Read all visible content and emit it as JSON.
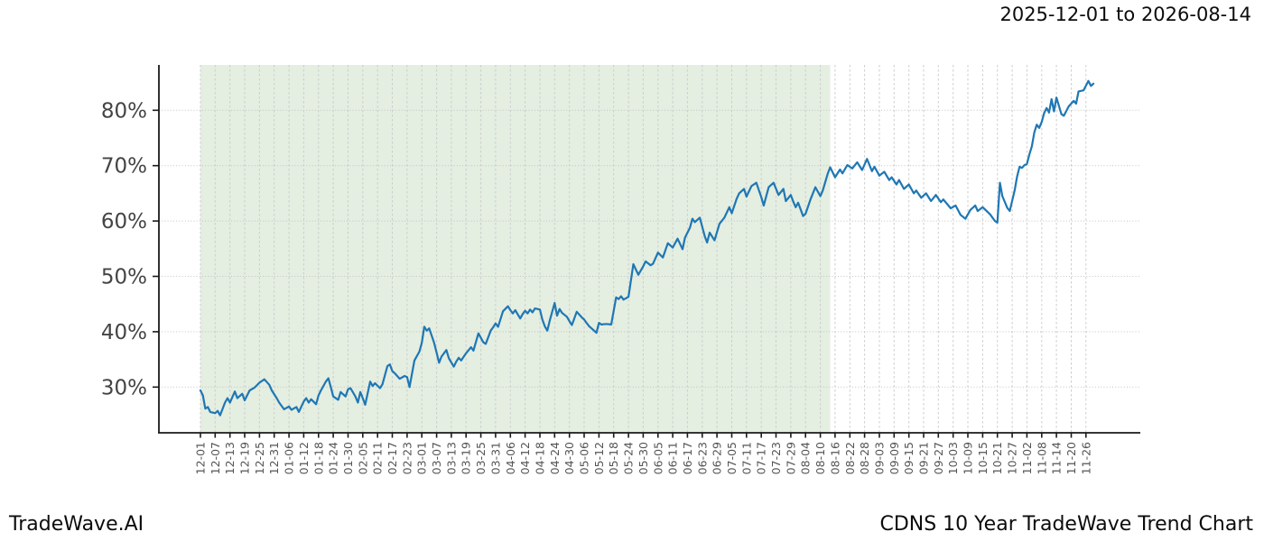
{
  "header": {
    "date_range": "2025-12-01 to 2026-08-14"
  },
  "footer": {
    "brand": "TradeWave.AI",
    "caption": "CDNS 10 Year TradeWave Trend Chart"
  },
  "chart_data": {
    "type": "line",
    "title": "2025-12-01 to 2026-08-14",
    "xlabel": "",
    "ylabel": "",
    "x_unit": "days since 2025-12-01",
    "x_tick_step_days": 6,
    "x_tick_labels": [
      "12-01",
      "12-07",
      "12-13",
      "12-19",
      "12-25",
      "12-31",
      "01-06",
      "01-12",
      "01-18",
      "01-24",
      "01-30",
      "02-05",
      "02-11",
      "02-17",
      "02-23",
      "03-01",
      "03-07",
      "03-13",
      "03-19",
      "03-25",
      "03-31",
      "04-06",
      "04-12",
      "04-18",
      "04-24",
      "04-30",
      "05-06",
      "05-12",
      "05-18",
      "05-24",
      "05-30",
      "06-05",
      "06-11",
      "06-17",
      "06-23",
      "06-29",
      "07-05",
      "07-11",
      "07-17",
      "07-23",
      "07-29",
      "08-04",
      "08-10",
      "08-16",
      "08-22",
      "08-28",
      "09-03",
      "09-09",
      "09-15",
      "09-21",
      "09-27",
      "10-03",
      "10-09",
      "10-15",
      "10-21",
      "10-27",
      "11-02",
      "11-08",
      "11-14",
      "11-20",
      "11-26"
    ],
    "x_domain_days": [
      0,
      382
    ],
    "y_ticks_pct": [
      30,
      40,
      50,
      60,
      70,
      80
    ],
    "y_tick_labels": [
      "30%",
      "40%",
      "50%",
      "60%",
      "70%",
      "80%"
    ],
    "y_domain_pct": [
      21.7,
      88.4
    ],
    "grid": true,
    "legend": "none",
    "highlight_region": {
      "label": "2025-12-01 to 2026-08-14",
      "start_day": 0,
      "end_day": 256,
      "fill": "#e4eee1"
    },
    "line_color": "#1f77b4",
    "axis_color": "#1a1a1a",
    "grid_color_v": "#cdcdcd",
    "grid_color_h": "#c4c4c4",
    "tick_label_color": "#555555",
    "y_label_color": "#444444",
    "series": [
      {
        "name": "CDNS TradeWave trend (%)",
        "points": [
          [
            0,
            29.4
          ],
          [
            1,
            28.5
          ],
          [
            2,
            26.1
          ],
          [
            3,
            26.4
          ],
          [
            4,
            25.5
          ],
          [
            6,
            25.3
          ],
          [
            7,
            25.7
          ],
          [
            8,
            24.9
          ],
          [
            10,
            27.2
          ],
          [
            11,
            28.0
          ],
          [
            12,
            27.2
          ],
          [
            14,
            29.2
          ],
          [
            15,
            28.0
          ],
          [
            17,
            28.8
          ],
          [
            18,
            27.6
          ],
          [
            20,
            29.4
          ],
          [
            22,
            29.9
          ],
          [
            24,
            30.8
          ],
          [
            26,
            31.4
          ],
          [
            28,
            30.4
          ],
          [
            29,
            29.4
          ],
          [
            31,
            28.0
          ],
          [
            32,
            27.2
          ],
          [
            34,
            26.0
          ],
          [
            36,
            26.5
          ],
          [
            37,
            25.9
          ],
          [
            39,
            26.4
          ],
          [
            40,
            25.5
          ],
          [
            42,
            27.4
          ],
          [
            43,
            28.0
          ],
          [
            44,
            27.2
          ],
          [
            45,
            27.8
          ],
          [
            47,
            26.9
          ],
          [
            48,
            28.5
          ],
          [
            49,
            29.4
          ],
          [
            50,
            30.2
          ],
          [
            51,
            31.0
          ],
          [
            52,
            31.6
          ],
          [
            53,
            30.0
          ],
          [
            54,
            28.3
          ],
          [
            56,
            27.7
          ],
          [
            57,
            29.1
          ],
          [
            59,
            28.3
          ],
          [
            60,
            29.6
          ],
          [
            61,
            29.8
          ],
          [
            63,
            28.3
          ],
          [
            64,
            27.2
          ],
          [
            65,
            29.1
          ],
          [
            66,
            28.0
          ],
          [
            67,
            26.8
          ],
          [
            69,
            31.0
          ],
          [
            70,
            30.2
          ],
          [
            71,
            30.7
          ],
          [
            73,
            29.8
          ],
          [
            74,
            30.5
          ],
          [
            76,
            33.8
          ],
          [
            77,
            34.1
          ],
          [
            78,
            32.9
          ],
          [
            79,
            32.5
          ],
          [
            81,
            31.5
          ],
          [
            83,
            32.0
          ],
          [
            84,
            31.8
          ],
          [
            85,
            30.0
          ],
          [
            87,
            34.8
          ],
          [
            89,
            36.4
          ],
          [
            90,
            38.0
          ],
          [
            91,
            40.9
          ],
          [
            92,
            40.2
          ],
          [
            93,
            40.6
          ],
          [
            95,
            38.0
          ],
          [
            96,
            36.2
          ],
          [
            97,
            34.4
          ],
          [
            98,
            35.5
          ],
          [
            100,
            36.7
          ],
          [
            101,
            35.2
          ],
          [
            103,
            33.7
          ],
          [
            104,
            34.6
          ],
          [
            105,
            35.3
          ],
          [
            106,
            34.8
          ],
          [
            108,
            36.1
          ],
          [
            110,
            37.2
          ],
          [
            111,
            36.6
          ],
          [
            113,
            39.7
          ],
          [
            114,
            38.9
          ],
          [
            115,
            38.1
          ],
          [
            116,
            37.8
          ],
          [
            118,
            40.2
          ],
          [
            119,
            40.8
          ],
          [
            120,
            41.5
          ],
          [
            121,
            40.9
          ],
          [
            123,
            43.7
          ],
          [
            125,
            44.6
          ],
          [
            126,
            43.9
          ],
          [
            127,
            43.3
          ],
          [
            128,
            43.9
          ],
          [
            130,
            42.4
          ],
          [
            131,
            43.2
          ],
          [
            132,
            43.8
          ],
          [
            133,
            43.3
          ],
          [
            134,
            44.0
          ],
          [
            135,
            43.5
          ],
          [
            136,
            44.2
          ],
          [
            138,
            44.0
          ],
          [
            139,
            42.2
          ],
          [
            140,
            41.0
          ],
          [
            141,
            40.2
          ],
          [
            142,
            42.0
          ],
          [
            144,
            45.2
          ],
          [
            145,
            42.9
          ],
          [
            146,
            44.1
          ],
          [
            147,
            43.4
          ],
          [
            149,
            42.7
          ],
          [
            150,
            41.9
          ],
          [
            151,
            41.2
          ],
          [
            153,
            43.6
          ],
          [
            155,
            42.6
          ],
          [
            156,
            42.2
          ],
          [
            157,
            41.6
          ],
          [
            158,
            41.0
          ],
          [
            159,
            40.6
          ],
          [
            161,
            39.8
          ],
          [
            162,
            41.6
          ],
          [
            163,
            41.3
          ],
          [
            165,
            41.4
          ],
          [
            167,
            41.3
          ],
          [
            169,
            46.2
          ],
          [
            170,
            45.9
          ],
          [
            171,
            46.4
          ],
          [
            172,
            45.8
          ],
          [
            174,
            46.3
          ],
          [
            176,
            52.2
          ],
          [
            178,
            50.3
          ],
          [
            180,
            51.8
          ],
          [
            181,
            52.7
          ],
          [
            183,
            52.0
          ],
          [
            184,
            52.3
          ],
          [
            186,
            54.3
          ],
          [
            188,
            53.4
          ],
          [
            190,
            56.0
          ],
          [
            192,
            55.2
          ],
          [
            194,
            56.8
          ],
          [
            196,
            54.9
          ],
          [
            197,
            57.0
          ],
          [
            199,
            58.8
          ],
          [
            200,
            60.4
          ],
          [
            201,
            59.8
          ],
          [
            203,
            60.6
          ],
          [
            205,
            57.3
          ],
          [
            206,
            56.1
          ],
          [
            207,
            57.9
          ],
          [
            209,
            56.5
          ],
          [
            211,
            59.5
          ],
          [
            213,
            60.6
          ],
          [
            215,
            62.5
          ],
          [
            216,
            61.4
          ],
          [
            218,
            64.0
          ],
          [
            219,
            65.0
          ],
          [
            221,
            65.8
          ],
          [
            222,
            64.4
          ],
          [
            224,
            66.3
          ],
          [
            226,
            66.9
          ],
          [
            228,
            64.3
          ],
          [
            229,
            62.8
          ],
          [
            231,
            66.1
          ],
          [
            233,
            66.9
          ],
          [
            235,
            64.7
          ],
          [
            237,
            65.8
          ],
          [
            238,
            63.6
          ],
          [
            240,
            64.7
          ],
          [
            241,
            63.5
          ],
          [
            242,
            62.5
          ],
          [
            243,
            63.3
          ],
          [
            245,
            60.9
          ],
          [
            246,
            61.3
          ],
          [
            248,
            63.9
          ],
          [
            250,
            66.1
          ],
          [
            252,
            64.5
          ],
          [
            253,
            65.5
          ],
          [
            255,
            68.5
          ],
          [
            256,
            69.7
          ],
          [
            258,
            67.9
          ],
          [
            260,
            69.3
          ],
          [
            261,
            68.6
          ],
          [
            263,
            70.1
          ],
          [
            265,
            69.5
          ],
          [
            267,
            70.6
          ],
          [
            269,
            69.2
          ],
          [
            271,
            71.2
          ],
          [
            273,
            69.0
          ],
          [
            274,
            69.8
          ],
          [
            276,
            68.2
          ],
          [
            278,
            68.9
          ],
          [
            280,
            67.4
          ],
          [
            281,
            67.9
          ],
          [
            283,
            66.6
          ],
          [
            284,
            67.4
          ],
          [
            286,
            65.8
          ],
          [
            288,
            66.6
          ],
          [
            290,
            65.0
          ],
          [
            291,
            65.5
          ],
          [
            293,
            64.2
          ],
          [
            295,
            65.0
          ],
          [
            297,
            63.6
          ],
          [
            299,
            64.7
          ],
          [
            301,
            63.4
          ],
          [
            302,
            63.9
          ],
          [
            305,
            62.3
          ],
          [
            307,
            62.8
          ],
          [
            309,
            61.1
          ],
          [
            311,
            60.4
          ],
          [
            313,
            62.0
          ],
          [
            315,
            62.8
          ],
          [
            316,
            61.8
          ],
          [
            318,
            62.5
          ],
          [
            321,
            61.2
          ],
          [
            323,
            60.0
          ],
          [
            324,
            59.7
          ],
          [
            325,
            66.9
          ],
          [
            326,
            64.5
          ],
          [
            328,
            62.4
          ],
          [
            329,
            61.8
          ],
          [
            331,
            65.5
          ],
          [
            332,
            68.0
          ],
          [
            333,
            69.8
          ],
          [
            334,
            69.6
          ],
          [
            335,
            70.1
          ],
          [
            336,
            70.3
          ],
          [
            337,
            72.0
          ],
          [
            338,
            73.5
          ],
          [
            339,
            76.0
          ],
          [
            340,
            77.4
          ],
          [
            341,
            76.8
          ],
          [
            342,
            77.9
          ],
          [
            343,
            79.5
          ],
          [
            344,
            80.4
          ],
          [
            345,
            79.6
          ],
          [
            346,
            82.0
          ],
          [
            347,
            79.8
          ],
          [
            348,
            82.3
          ],
          [
            350,
            79.3
          ],
          [
            351,
            79.0
          ],
          [
            353,
            80.7
          ],
          [
            355,
            81.7
          ],
          [
            356,
            81.2
          ],
          [
            357,
            83.4
          ],
          [
            359,
            83.6
          ],
          [
            361,
            85.3
          ],
          [
            362,
            84.4
          ],
          [
            363,
            84.8
          ]
        ]
      }
    ]
  }
}
